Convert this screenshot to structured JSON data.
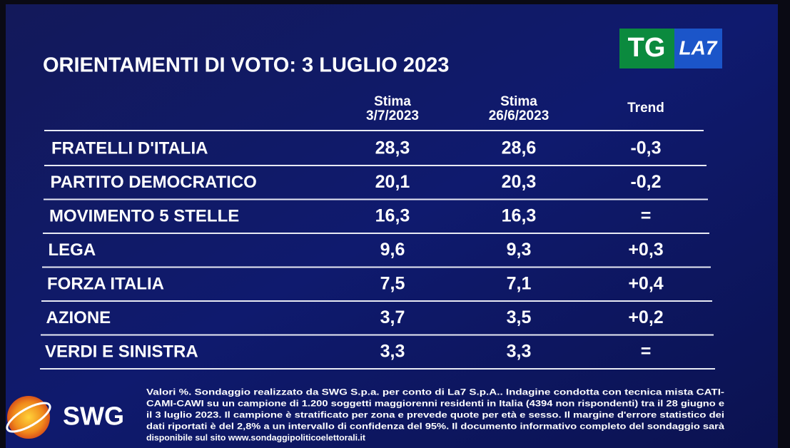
{
  "header": {
    "title": "ORIENTAMENTI DI VOTO: 3 LUGLIO 2023",
    "logo_left": "TG",
    "logo_right": "LA7"
  },
  "table": {
    "columns": [
      [
        "Stima",
        "3/7/2023"
      ],
      [
        "Stima",
        "26/6/2023"
      ],
      [
        "Trend"
      ]
    ],
    "rows": [
      [
        "FRATELLI D'ITALIA",
        "28,3",
        "28,6",
        "-0,3"
      ],
      [
        "PARTITO DEMOCRATICO",
        "20,1",
        "20,3",
        "-0,2"
      ],
      [
        "MOVIMENTO 5 STELLE",
        "16,3",
        "16,3",
        "="
      ],
      [
        "LEGA",
        "9,6",
        "9,3",
        "+0,3"
      ],
      [
        "FORZA ITALIA",
        "7,5",
        "7,1",
        "+0,4"
      ],
      [
        "AZIONE",
        "3,7",
        "3,5",
        "+0,2"
      ],
      [
        "VERDI E SINISTRA",
        "3,3",
        "3,3",
        "="
      ]
    ]
  },
  "footer": {
    "brand": "SWG",
    "note": [
      "Valori %. Sondaggio realizzato da SWG S.p.a. per conto di La7 S.p.A.. Indagine condotta con tecnica mista CATI-",
      "CAMI-CAWI su un campione di 1.200 soggetti maggiorenni residenti in Italia (4394 non rispondenti) tra il 28 giugno e",
      "il 3 luglio 2023. Il campione è stratificato per zona e prevede quote per età e sesso. Il margine d'errore statistico dei",
      "dati riportati è del 2,8% a un intervallo di confidenza del 95%. Il documento informativo completo del sondaggio sarà",
      "disponibile sul sito www.sondaggipoliticoelettorali.it"
    ]
  }
}
